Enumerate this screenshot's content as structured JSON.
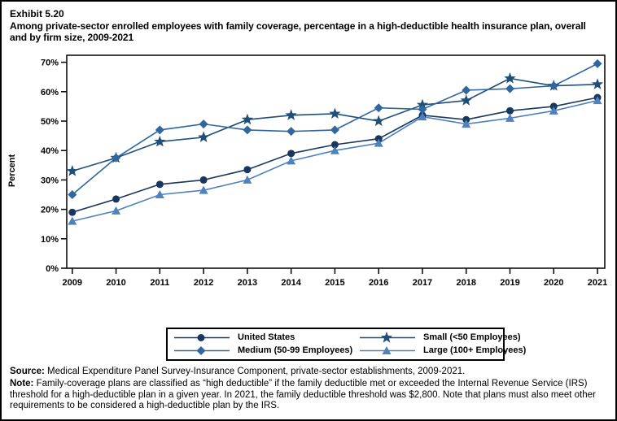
{
  "header": {
    "exhibit": "Exhibit 5.20",
    "title": "Among private-sector enrolled employees with family coverage, percentage in a high-deductible health insurance plan, overall and by firm size, 2009-2021"
  },
  "chart_data": {
    "type": "line",
    "title": "Exhibit 5.20 Among private-sector enrolled employees with family coverage, percentage in a high-deductible health insurance plan, overall and by firm size, 2009-2021",
    "xlabel": "",
    "ylabel": "Percent",
    "ylim": [
      0,
      70
    ],
    "ytick_step": 10,
    "ytick_labels": [
      "0%",
      "10%",
      "20%",
      "30%",
      "40%",
      "50%",
      "60%",
      "70%"
    ],
    "grid": false,
    "legend_position": "bottom",
    "categories": [
      "2009",
      "2010",
      "2011",
      "2012",
      "2013",
      "2014",
      "2015",
      "2016",
      "2017",
      "2018",
      "2019",
      "2020",
      "2021"
    ],
    "series": [
      {
        "name": "United States",
        "marker": "circle",
        "color": "#17375E",
        "values": [
          19,
          23.5,
          28.5,
          30,
          33.5,
          39,
          42,
          44,
          52,
          50.5,
          53.5,
          55,
          58
        ]
      },
      {
        "name": "Small (<50 Employees)",
        "marker": "star",
        "color": "#1F4E79",
        "values": [
          33,
          37.5,
          43,
          44.5,
          50.5,
          52,
          52.5,
          50,
          55.5,
          57,
          64.5,
          62,
          62.5
        ]
      },
      {
        "name": "Medium (50-99 Employees)",
        "marker": "diamond",
        "color": "#31669E",
        "values": [
          25,
          37.5,
          47,
          49,
          47,
          46.5,
          47,
          54.5,
          54,
          60.5,
          61,
          62,
          69.5
        ]
      },
      {
        "name": "Large (100+ Employees)",
        "marker": "triangle",
        "color": "#4F81BD",
        "values": [
          16,
          19.5,
          25,
          26.5,
          30,
          36.5,
          40,
          42.5,
          51.5,
          49,
          51,
          53.5,
          57
        ]
      }
    ]
  },
  "footer": {
    "source_label": "Source:",
    "source_text": " Medical Expenditure Panel Survey-Insurance Component, private-sector establishments, 2009-2021.",
    "note_label": "Note:",
    "note_text": " Family-coverage plans are classified as “high deductible” if the family deductible met or exceeded the Internal Revenue Service (IRS) threshold for a high-deductible plan in a given year. In 2021, the family deductible threshold was $2,800. Note that plans must also meet other requirements to be considered a high-deductible plan by the IRS."
  }
}
